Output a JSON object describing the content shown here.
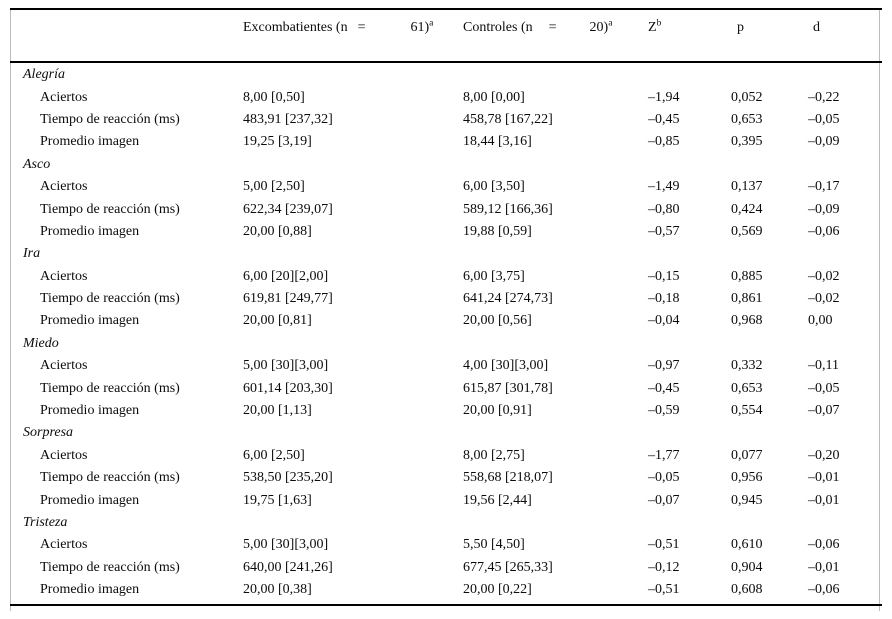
{
  "table": {
    "header": {
      "group1": {
        "label": "Excombatientes (n",
        "eq": "=",
        "count": "61)",
        "sup": "a"
      },
      "group2": {
        "label": "Controles (n",
        "eq": "=",
        "count": "20)",
        "sup": "a"
      },
      "z": {
        "label": "Z",
        "sup": "b"
      },
      "p": "p",
      "d": "d"
    },
    "sections": [
      {
        "label": "Alegría",
        "rows": [
          {
            "label": "Aciertos",
            "excombatientes": "8,00 [0,50]",
            "controles": "8,00 [0,00]",
            "z": "–1,94",
            "p": "0,052",
            "d": "–0,22"
          },
          {
            "label": "Tiempo de reacción (ms)",
            "excombatientes": "483,91 [237,32]",
            "controles": "458,78 [167,22]",
            "z": "–0,45",
            "p": "0,653",
            "d": "–0,05"
          },
          {
            "label": "Promedio imagen",
            "excombatientes": "19,25 [3,19]",
            "controles": "18,44 [3,16]",
            "z": "–0,85",
            "p": "0,395",
            "d": "–0,09"
          }
        ]
      },
      {
        "label": "Asco",
        "rows": [
          {
            "label": "Aciertos",
            "excombatientes": "5,00 [2,50]",
            "controles": "6,00 [3,50]",
            "z": "–1,49",
            "p": "0,137",
            "d": "–0,17"
          },
          {
            "label": "Tiempo de reacción (ms)",
            "excombatientes": "622,34 [239,07]",
            "controles": "589,12 [166,36]",
            "z": "–0,80",
            "p": "0,424",
            "d": "–0,09"
          },
          {
            "label": "Promedio imagen",
            "excombatientes": "20,00 [0,88]",
            "controles": "19,88 [0,59]",
            "z": "–0,57",
            "p": "0,569",
            "d": "–0,06"
          }
        ]
      },
      {
        "label": "Ira",
        "rows": [
          {
            "label": "Aciertos",
            "excombatientes": "6,00 [20][2,00]",
            "controles": "6,00 [3,75]",
            "z": "–0,15",
            "p": "0,885",
            "d": "–0,02"
          },
          {
            "label": "Tiempo de reacción (ms)",
            "excombatientes": "619,81 [249,77]",
            "controles": "641,24 [274,73]",
            "z": "–0,18",
            "p": "0,861",
            "d": "–0,02"
          },
          {
            "label": "Promedio imagen",
            "excombatientes": "20,00 [0,81]",
            "controles": "20,00 [0,56]",
            "z": "–0,04",
            "p": "0,968",
            "d": "0,00"
          }
        ]
      },
      {
        "label": "Miedo",
        "rows": [
          {
            "label": "Aciertos",
            "excombatientes": "5,00 [30][3,00]",
            "controles": "4,00 [30][3,00]",
            "z": "–0,97",
            "p": "0,332",
            "d": "–0,11"
          },
          {
            "label": "Tiempo de reacción (ms)",
            "excombatientes": "601,14 [203,30]",
            "controles": "615,87 [301,78]",
            "z": "–0,45",
            "p": "0,653",
            "d": "–0,05"
          },
          {
            "label": "Promedio imagen",
            "excombatientes": "20,00 [1,13]",
            "controles": "20,00 [0,91]",
            "z": "–0,59",
            "p": "0,554",
            "d": "–0,07"
          }
        ]
      },
      {
        "label": "Sorpresa",
        "rows": [
          {
            "label": "Aciertos",
            "excombatientes": "6,00 [2,50]",
            "controles": "8,00 [2,75]",
            "z": "–1,77",
            "p": "0,077",
            "d": "–0,20"
          },
          {
            "label": "Tiempo de reacción (ms)",
            "excombatientes": "538,50 [235,20]",
            "controles": "558,68 [218,07]",
            "z": "–0,05",
            "p": "0,956",
            "d": "–0,01"
          },
          {
            "label": "Promedio imagen",
            "excombatientes": "19,75 [1,63]",
            "controles": "19,56 [2,44]",
            "z": "–0,07",
            "p": "0,945",
            "d": "–0,01"
          }
        ]
      },
      {
        "label": "Tristeza",
        "rows": [
          {
            "label": "Aciertos",
            "excombatientes": "5,00 [30][3,00]",
            "controles": "5,50 [4,50]",
            "z": "–0,51",
            "p": "0,610",
            "d": "–0,06"
          },
          {
            "label": "Tiempo de reacción (ms)",
            "excombatientes": "640,00 [241,26]",
            "controles": "677,45 [265,33]",
            "z": "–0,12",
            "p": "0,904",
            "d": "–0,01"
          },
          {
            "label": "Promedio imagen",
            "excombatientes": "20,00 [0,38]",
            "controles": "20,00 [0,22]",
            "z": "–0,51",
            "p": "0,608",
            "d": "–0,06"
          }
        ]
      }
    ]
  }
}
